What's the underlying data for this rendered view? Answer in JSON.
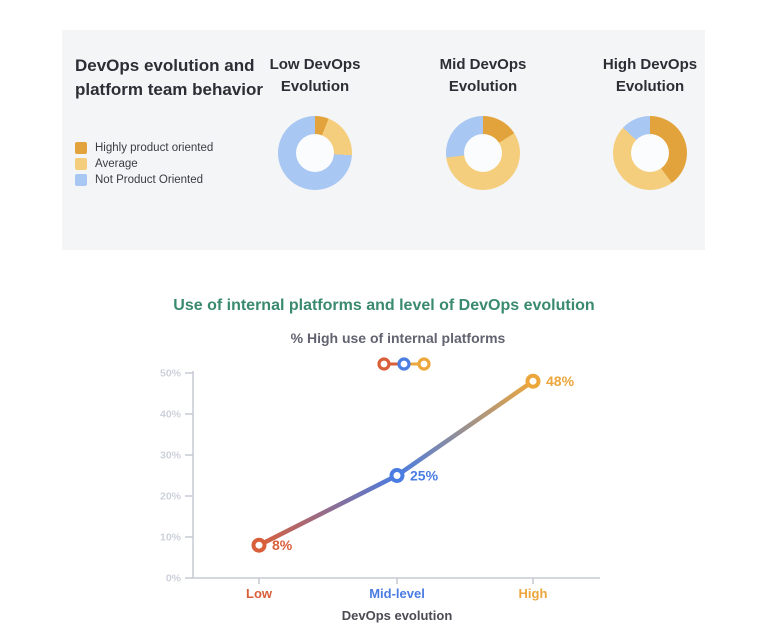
{
  "panel": {
    "title": "DevOps evolution and platform team behavior",
    "legend": [
      {
        "label": "Highly product oriented",
        "color": "#E2A33C"
      },
      {
        "label": "Average",
        "color": "#F5CE7D"
      },
      {
        "label": "Not Product Oriented",
        "color": "#A9C7F3"
      }
    ]
  },
  "chart_data": [
    {
      "type": "pie",
      "variant": "donut",
      "title": "Low DevOps Evolution",
      "labels": [
        "Highly product oriented",
        "Average",
        "Not Product Oriented"
      ],
      "values": [
        6,
        20,
        74
      ],
      "colors": [
        "#E2A33C",
        "#F5CE7D",
        "#A9C7F3"
      ]
    },
    {
      "type": "pie",
      "variant": "donut",
      "title": "Mid DevOps Evolution",
      "labels": [
        "Highly product oriented",
        "Average",
        "Not Product Oriented"
      ],
      "values": [
        16,
        57,
        27
      ],
      "colors": [
        "#E2A33C",
        "#F5CE7D",
        "#A9C7F3"
      ]
    },
    {
      "type": "pie",
      "variant": "donut",
      "title": "High DevOps Evolution",
      "labels": [
        "Highly product oriented",
        "Average",
        "Not Product Oriented"
      ],
      "values": [
        40,
        47,
        13
      ],
      "colors": [
        "#E2A33C",
        "#F5CE7D",
        "#A9C7F3"
      ]
    },
    {
      "type": "line",
      "title": "Use of internal platforms and level of DevOps evolution",
      "subtitle": "% High use of internal platforms",
      "xlabel": "DevOps evolution",
      "categories": [
        "Low",
        "Mid-level",
        "High"
      ],
      "values": [
        8,
        25,
        48
      ],
      "point_labels": [
        "8%",
        "25%",
        "48%"
      ],
      "point_colors": [
        "#D95F3B",
        "#4A7CE2",
        "#ECA63C"
      ],
      "ylim": [
        0,
        50
      ],
      "yticks": [
        "0%",
        "10%",
        "20%",
        "30%",
        "40%",
        "50%"
      ],
      "grid": false,
      "legend_position": "top-center",
      "line_style": "gradient red-blue-yellow"
    }
  ]
}
